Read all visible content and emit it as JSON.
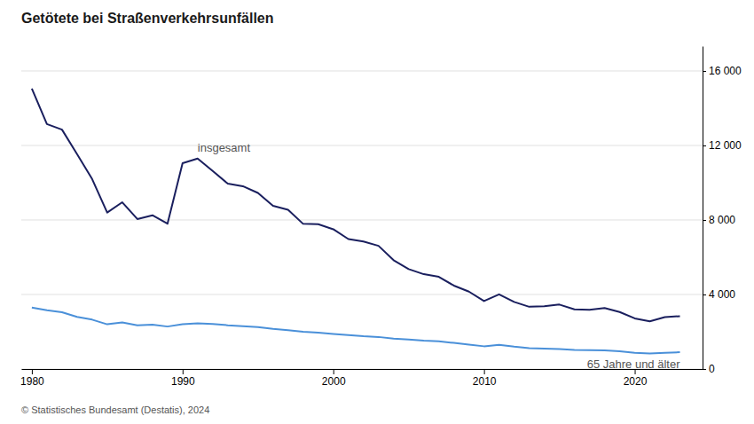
{
  "chart_data": {
    "type": "line",
    "title": "Getötete bei Straßenverkehrsunfällen",
    "source": "© Statistisches Bundesamt (Destatis), 2024",
    "x": [
      1980,
      1981,
      1982,
      1983,
      1984,
      1985,
      1986,
      1987,
      1988,
      1989,
      1990,
      1991,
      1992,
      1993,
      1994,
      1995,
      1996,
      1997,
      1998,
      1999,
      2000,
      2001,
      2002,
      2003,
      2004,
      2005,
      2006,
      2007,
      2008,
      2009,
      2010,
      2011,
      2012,
      2013,
      2014,
      2015,
      2016,
      2017,
      2018,
      2019,
      2020,
      2021,
      2022,
      2023
    ],
    "series": [
      {
        "name": "insgesamt",
        "color": "#1a1f5e",
        "values": [
          15050,
          13150,
          12850,
          11540,
          10200,
          8400,
          8950,
          8050,
          8250,
          7800,
          11046,
          11300,
          10631,
          9949,
          9814,
          9454,
          8758,
          8549,
          7792,
          7772,
          7503,
          6977,
          6842,
          6613,
          5842,
          5361,
          5091,
          4949,
          4477,
          4154,
          3648,
          4009,
          3600,
          3340,
          3368,
          3459,
          3206,
          3177,
          3275,
          3059,
          2719,
          2562,
          2788,
          2839
        ]
      },
      {
        "name": "65 Jahre und älter",
        "color": "#4a90d9",
        "values": [
          3300,
          3150,
          3050,
          2800,
          2650,
          2400,
          2500,
          2350,
          2380,
          2280,
          2400,
          2450,
          2420,
          2350,
          2300,
          2250,
          2150,
          2080,
          2000,
          1950,
          1880,
          1820,
          1760,
          1720,
          1630,
          1580,
          1520,
          1490,
          1400,
          1310,
          1220,
          1300,
          1200,
          1120,
          1100,
          1070,
          1020,
          1010,
          1000,
          950,
          870,
          830,
          870,
          900
        ]
      }
    ],
    "xlim": [
      1979.3,
      2024.5
    ],
    "xticks": [
      1980,
      1990,
      2000,
      2010,
      2020
    ],
    "ylim": [
      0,
      17333
    ],
    "yticks": [
      0,
      {
        "value": 4000,
        "label": "4 000"
      },
      {
        "value": 8000,
        "label": "8 000"
      },
      {
        "value": 12000,
        "label": "12 000"
      },
      {
        "value": 16000,
        "label": "16 000"
      }
    ],
    "grid": true
  }
}
